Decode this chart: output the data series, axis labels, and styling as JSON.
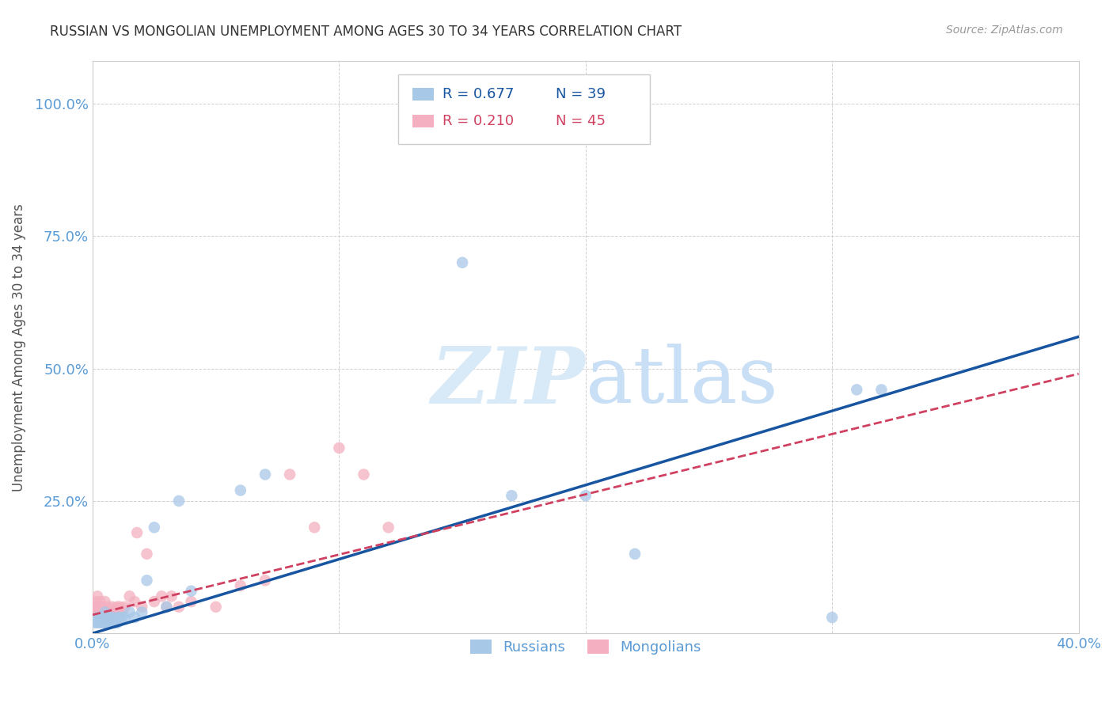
{
  "title": "RUSSIAN VS MONGOLIAN UNEMPLOYMENT AMONG AGES 30 TO 34 YEARS CORRELATION CHART",
  "source": "Source: ZipAtlas.com",
  "ylabel": "Unemployment Among Ages 30 to 34 years",
  "xlim": [
    0.0,
    0.4
  ],
  "ylim": [
    0.0,
    1.08
  ],
  "xticks": [
    0.0,
    0.1,
    0.2,
    0.3,
    0.4
  ],
  "xticklabels": [
    "0.0%",
    "",
    "",
    "",
    "40.0%"
  ],
  "yticks": [
    0.25,
    0.5,
    0.75,
    1.0
  ],
  "yticklabels": [
    "25.0%",
    "50.0%",
    "75.0%",
    "100.0%"
  ],
  "russian_R": "0.677",
  "russian_N": "39",
  "mongolian_R": "0.210",
  "mongolian_N": "45",
  "russian_color": "#a8c8e8",
  "mongolian_color": "#f4b0c0",
  "russian_line_color": "#1855a0",
  "mongolian_line_color": "#d04060",
  "grid_color": "#cccccc",
  "title_color": "#333333",
  "axis_label_color": "#555555",
  "tick_color": "#5b9bd5",
  "watermark_zip_color": "#d8eaf8",
  "watermark_atlas_color": "#c8dff5",
  "russian_x": [
    0.001,
    0.002,
    0.002,
    0.003,
    0.003,
    0.004,
    0.004,
    0.005,
    0.005,
    0.005,
    0.006,
    0.006,
    0.007,
    0.007,
    0.008,
    0.008,
    0.009,
    0.01,
    0.01,
    0.011,
    0.012,
    0.013,
    0.015,
    0.017,
    0.02,
    0.022,
    0.025,
    0.03,
    0.035,
    0.04,
    0.06,
    0.07,
    0.15,
    0.17,
    0.2,
    0.22,
    0.3,
    0.31,
    0.32
  ],
  "russian_y": [
    0.02,
    0.02,
    0.03,
    0.02,
    0.03,
    0.02,
    0.03,
    0.02,
    0.03,
    0.04,
    0.02,
    0.03,
    0.02,
    0.03,
    0.02,
    0.03,
    0.02,
    0.02,
    0.03,
    0.03,
    0.03,
    0.03,
    0.04,
    0.03,
    0.04,
    0.1,
    0.2,
    0.05,
    0.25,
    0.08,
    0.27,
    0.3,
    0.7,
    0.26,
    0.26,
    0.15,
    0.03,
    0.46,
    0.46
  ],
  "mongolian_x": [
    0.001,
    0.001,
    0.001,
    0.002,
    0.002,
    0.002,
    0.003,
    0.003,
    0.003,
    0.004,
    0.004,
    0.005,
    0.005,
    0.005,
    0.006,
    0.006,
    0.007,
    0.007,
    0.008,
    0.008,
    0.009,
    0.01,
    0.01,
    0.011,
    0.012,
    0.013,
    0.015,
    0.017,
    0.02,
    0.025,
    0.03,
    0.035,
    0.04,
    0.05,
    0.06,
    0.07,
    0.08,
    0.09,
    0.1,
    0.11,
    0.12,
    0.018,
    0.022,
    0.028,
    0.032
  ],
  "mongolian_y": [
    0.04,
    0.05,
    0.06,
    0.04,
    0.05,
    0.07,
    0.04,
    0.05,
    0.06,
    0.04,
    0.05,
    0.03,
    0.04,
    0.06,
    0.04,
    0.05,
    0.03,
    0.04,
    0.04,
    0.05,
    0.04,
    0.04,
    0.05,
    0.05,
    0.04,
    0.05,
    0.07,
    0.06,
    0.05,
    0.06,
    0.05,
    0.05,
    0.06,
    0.05,
    0.09,
    0.1,
    0.3,
    0.2,
    0.35,
    0.3,
    0.2,
    0.19,
    0.15,
    0.07,
    0.07
  ],
  "russian_line_x": [
    0.0,
    0.4
  ],
  "russian_line_y": [
    0.0,
    0.56
  ],
  "mongolian_line_x": [
    0.0,
    0.4
  ],
  "mongolian_line_y": [
    0.035,
    0.49
  ]
}
